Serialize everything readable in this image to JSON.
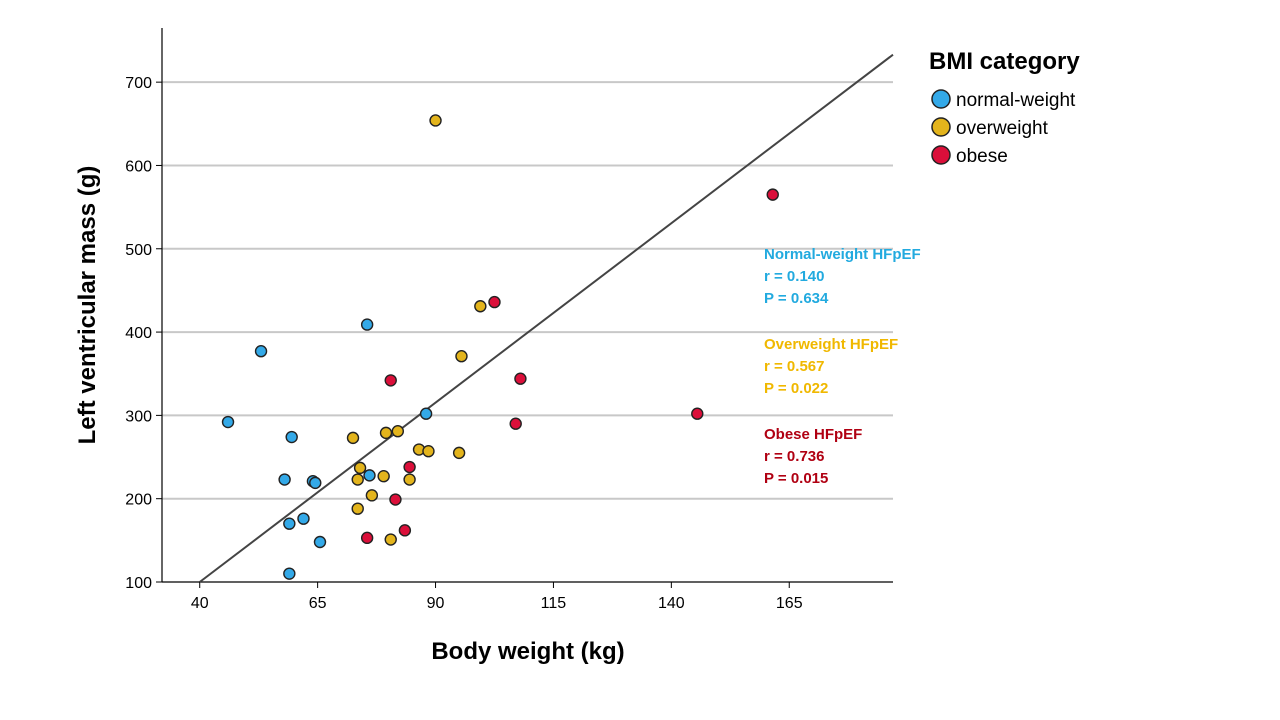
{
  "chart_data": {
    "type": "scatter",
    "xlabel": "Body weight (kg)",
    "ylabel": "Left ventricular mass (g)",
    "xlim": [
      32,
      187
    ],
    "ylim": [
      100,
      765
    ],
    "x_ticks": [
      40,
      65,
      90,
      115,
      140,
      165
    ],
    "y_ticks": [
      100,
      200,
      300,
      400,
      500,
      600,
      700
    ],
    "grid": "horizontal",
    "legend": {
      "title": "BMI category",
      "position": "right"
    },
    "fit_line": {
      "x": [
        40,
        187
      ],
      "y": [
        100,
        733
      ]
    },
    "series": [
      {
        "name": "normal-weight",
        "color": "#33a9e8",
        "points": [
          {
            "x": 46,
            "y": 292
          },
          {
            "x": 53,
            "y": 377
          },
          {
            "x": 58,
            "y": 223
          },
          {
            "x": 59,
            "y": 110
          },
          {
            "x": 59,
            "y": 170
          },
          {
            "x": 59.5,
            "y": 274
          },
          {
            "x": 62,
            "y": 176
          },
          {
            "x": 64,
            "y": 221
          },
          {
            "x": 64.5,
            "y": 219
          },
          {
            "x": 65.5,
            "y": 148
          },
          {
            "x": 75.5,
            "y": 409
          },
          {
            "x": 76,
            "y": 228
          },
          {
            "x": 88,
            "y": 302
          }
        ]
      },
      {
        "name": "overweight",
        "color": "#e3b41c",
        "points": [
          {
            "x": 72.5,
            "y": 273
          },
          {
            "x": 73.5,
            "y": 188
          },
          {
            "x": 73.5,
            "y": 223
          },
          {
            "x": 74,
            "y": 237
          },
          {
            "x": 76.5,
            "y": 204
          },
          {
            "x": 79,
            "y": 227
          },
          {
            "x": 79.5,
            "y": 279
          },
          {
            "x": 80.5,
            "y": 151
          },
          {
            "x": 82,
            "y": 281
          },
          {
            "x": 84.5,
            "y": 223
          },
          {
            "x": 86.5,
            "y": 259
          },
          {
            "x": 88.5,
            "y": 257
          },
          {
            "x": 90,
            "y": 654
          },
          {
            "x": 95,
            "y": 255
          },
          {
            "x": 95.5,
            "y": 371
          },
          {
            "x": 99.5,
            "y": 431
          }
        ]
      },
      {
        "name": "obese",
        "color": "#db0f3a",
        "points": [
          {
            "x": 75.5,
            "y": 153
          },
          {
            "x": 80.5,
            "y": 342
          },
          {
            "x": 81.5,
            "y": 199
          },
          {
            "x": 83.5,
            "y": 162
          },
          {
            "x": 84.5,
            "y": 238
          },
          {
            "x": 102.5,
            "y": 436
          },
          {
            "x": 107,
            "y": 290
          },
          {
            "x": 108,
            "y": 344
          },
          {
            "x": 145.5,
            "y": 302
          },
          {
            "x": 161.5,
            "y": 565
          }
        ]
      }
    ],
    "annotations": [
      {
        "lines": [
          "Normal-weight HFpEF",
          "r = 0.140",
          "P = 0.634"
        ],
        "color": "#22aadf"
      },
      {
        "lines": [
          "Overweight HFpEF",
          "r = 0.567",
          "P = 0.022"
        ],
        "color": "#f0b800"
      },
      {
        "lines": [
          "Obese HFpEF",
          "r = 0.736",
          "P = 0.015"
        ],
        "color": "#b00012"
      }
    ]
  }
}
